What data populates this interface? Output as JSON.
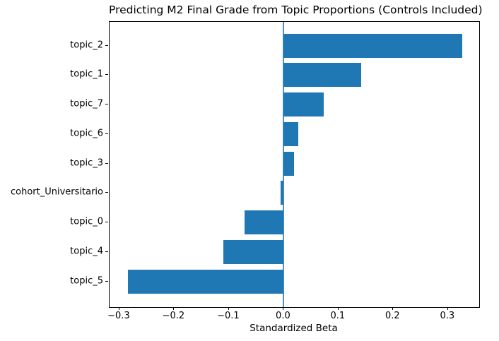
{
  "figure": {
    "background": "#ffffff",
    "spine_color": "#000000",
    "bar_color": "#1f77b4",
    "zero_line_color": "#1f77b4",
    "text_color": "#000000"
  },
  "chart_data": {
    "type": "bar",
    "orientation": "horizontal",
    "title": "Predicting M2 Final Grade from Topic Proportions (Controls Included)",
    "xlabel": "Standardized Beta",
    "ylabel": "",
    "categories": [
      "topic_2",
      "topic_1",
      "topic_7",
      "topic_6",
      "topic_3",
      "cohort_Universitario",
      "topic_0",
      "topic_4",
      "topic_5"
    ],
    "values": [
      0.326,
      0.141,
      0.073,
      0.026,
      0.019,
      -0.006,
      -0.071,
      -0.11,
      -0.285
    ],
    "xlim": [
      -0.318,
      0.357
    ],
    "xticks": [
      -0.3,
      -0.2,
      -0.1,
      0.0,
      0.1,
      0.2,
      0.3
    ],
    "xtick_labels": [
      "−0.3",
      "−0.2",
      "−0.1",
      "0.0",
      "0.1",
      "0.2",
      "0.3"
    ],
    "grid": false,
    "legend": null,
    "zero_line_x": 0.0
  }
}
